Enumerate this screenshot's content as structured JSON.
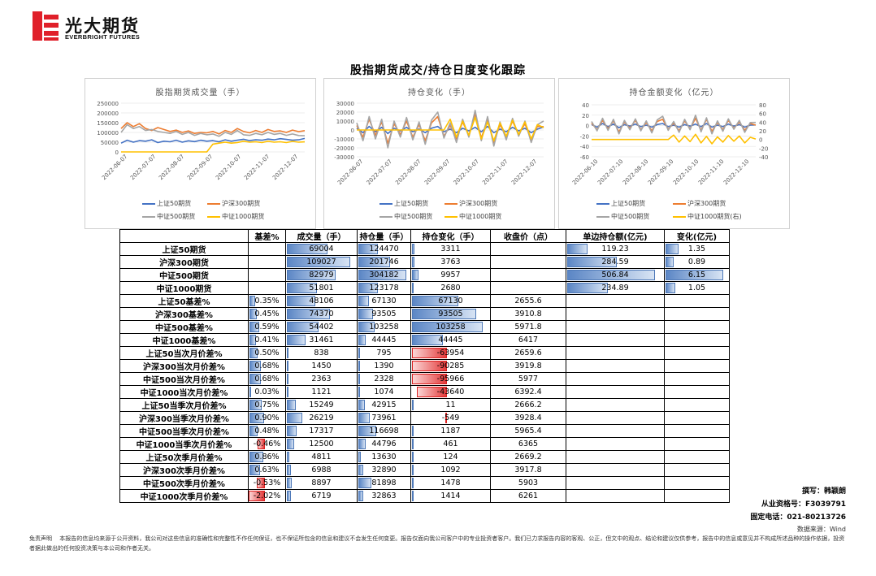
{
  "brand": {
    "name_cn": "光大期货",
    "name_en": "EVERBRIGHT FUTURES",
    "colors": {
      "red": "#e0202a",
      "dark": "#111111"
    }
  },
  "page_title": "股指期货成交/持仓日度变化跟踪",
  "chart_data": [
    {
      "type": "line",
      "title": "股指期货成交量（手）",
      "x_ticks": [
        "2022-06-07",
        "2022-07-07",
        "2022-08-07",
        "2022-09-07",
        "2022-10-07",
        "2022-11-07",
        "2022-12-07"
      ],
      "y_ticks": [
        0,
        50000,
        100000,
        150000,
        200000,
        250000
      ],
      "y_tick_labels": [
        "0",
        "50000",
        "100000",
        "150000",
        "200000",
        "250000"
      ],
      "ylim": [
        0,
        250000
      ],
      "series": [
        {
          "name": "上证50期货",
          "color": "#4472c4",
          "values": [
            45000,
            60000,
            50000,
            58000,
            55000,
            62000,
            48000,
            55000,
            52000,
            60000,
            50000,
            57000,
            53000,
            60000,
            55000,
            58000,
            52000,
            62000,
            55000,
            60000,
            65000,
            58000,
            62000,
            60000,
            66000,
            62000,
            68000,
            64000,
            60000,
            62000,
            69004
          ]
        },
        {
          "name": "沪深300期货",
          "color": "#ed7d31",
          "values": [
            120000,
            150000,
            130000,
            145000,
            120000,
            110000,
            125000,
            115000,
            105000,
            112000,
            100000,
            108000,
            95000,
            100000,
            98000,
            105000,
            92000,
            110000,
            100000,
            120000,
            105000,
            98000,
            110000,
            100000,
            115000,
            105000,
            108000,
            100000,
            112000,
            104000,
            109027
          ]
        },
        {
          "name": "中证500期货",
          "color": "#a5a5a5",
          "values": [
            100000,
            140000,
            120000,
            130000,
            110000,
            115000,
            105000,
            100000,
            95000,
            105000,
            90000,
            100000,
            85000,
            95000,
            88000,
            92000,
            80000,
            100000,
            90000,
            110000,
            88000,
            85000,
            95000,
            88000,
            100000,
            90000,
            95000,
            85000,
            92000,
            84000,
            82979
          ]
        },
        {
          "name": "中证1000期货",
          "color": "#ffc000",
          "values": [
            0,
            0,
            0,
            0,
            0,
            0,
            0,
            0,
            0,
            0,
            0,
            0,
            0,
            0,
            0,
            40000,
            45000,
            50000,
            45000,
            48000,
            55000,
            50000,
            52000,
            48000,
            55000,
            50000,
            52000,
            48000,
            54000,
            50000,
            51801
          ]
        }
      ]
    },
    {
      "type": "line",
      "title": "持仓变化（手）",
      "x_ticks": [
        "2022-06-07",
        "2022-07-07",
        "2022-08-07",
        "2022-09-07",
        "2022-10-07",
        "2022-11-07",
        "2022-12-07"
      ],
      "y_ticks": [
        -30000,
        -20000,
        -10000,
        0,
        10000,
        20000,
        30000
      ],
      "y_tick_labels": [
        "-30000",
        "-20000",
        "-10000",
        "0",
        "10000",
        "20000",
        "30000"
      ],
      "ylim": [
        -30000,
        30000
      ],
      "series": [
        {
          "name": "上证50期货",
          "color": "#4472c4",
          "values": [
            2000,
            -3000,
            4000,
            -2000,
            3000,
            -4000,
            2000,
            -1000,
            3000,
            -2000,
            1000,
            -3000,
            2000,
            4000,
            -2000,
            1000,
            -3000,
            2000,
            -1000,
            3000,
            -2000,
            4000,
            -3000,
            1000,
            -2000,
            3000,
            -1000,
            2000,
            -3000,
            1000,
            3311
          ]
        },
        {
          "name": "沪深300期货",
          "color": "#ed7d31",
          "values": [
            5000,
            -8000,
            12000,
            -6000,
            9000,
            -15000,
            7000,
            -5000,
            10000,
            -8000,
            6000,
            -12000,
            8000,
            15000,
            -7000,
            5000,
            -10000,
            9000,
            -6000,
            18000,
            -9000,
            12000,
            -14000,
            6000,
            -8000,
            10000,
            -5000,
            7000,
            -11000,
            4000,
            3763
          ]
        },
        {
          "name": "中证500期货",
          "color": "#a5a5a5",
          "values": [
            8000,
            -12000,
            15000,
            -10000,
            12000,
            -20000,
            10000,
            -8000,
            14000,
            -11000,
            9000,
            -16000,
            11000,
            20000,
            -9000,
            8000,
            -14000,
            12000,
            -8000,
            22000,
            -12000,
            15000,
            -18000,
            9000,
            -11000,
            13000,
            -7000,
            10000,
            -14000,
            6000,
            9957
          ]
        },
        {
          "name": "中证1000期货",
          "color": "#ffc000",
          "values": [
            0,
            0,
            0,
            0,
            0,
            0,
            0,
            0,
            0,
            0,
            0,
            0,
            0,
            0,
            0,
            12000,
            -8000,
            10000,
            -6000,
            14000,
            -10000,
            9000,
            -12000,
            8000,
            -7000,
            11000,
            -5000,
            9000,
            -10000,
            6000,
            2680
          ]
        }
      ]
    },
    {
      "type": "line",
      "title": "持仓金额变化（亿元）",
      "x_ticks": [
        "2022-06-10",
        "2022-07-10",
        "2022-08-10",
        "2022-09-10",
        "2022-10-10",
        "2022-11-10",
        "2022-12-10"
      ],
      "y_ticks": [
        -60,
        -40,
        -20,
        0,
        20,
        40
      ],
      "y_tick_labels": [
        "-60",
        "-40",
        "-20",
        "0",
        "20",
        "40"
      ],
      "y2_ticks": [
        -40,
        -20,
        0,
        20,
        40,
        60,
        80
      ],
      "y2_tick_labels": [
        "-40",
        "-20",
        "0",
        "20",
        "40",
        "60",
        "80"
      ],
      "ylim": [
        -60,
        40
      ],
      "y2lim": [
        -40,
        80
      ],
      "series": [
        {
          "name": "上证50期货",
          "color": "#4472c4",
          "values": [
            2,
            -3,
            4,
            -2,
            3,
            -4,
            2,
            -1,
            3,
            -2,
            1,
            -3,
            2,
            4,
            -2,
            1,
            -3,
            2,
            -1,
            3,
            -2,
            4,
            -3,
            1,
            -2,
            3,
            -1,
            2,
            -3,
            1,
            1.35
          ]
        },
        {
          "name": "沪深300期货",
          "color": "#ed7d31",
          "values": [
            5,
            -8,
            10,
            -6,
            9,
            -12,
            7,
            -5,
            10,
            -8,
            6,
            -10,
            8,
            12,
            -7,
            5,
            -10,
            9,
            -6,
            14,
            -9,
            12,
            -11,
            6,
            -8,
            10,
            -5,
            7,
            -9,
            4,
            0.89
          ]
        },
        {
          "name": "中证500期货",
          "color": "#a5a5a5",
          "values": [
            8,
            -10,
            14,
            -9,
            12,
            -16,
            10,
            -8,
            13,
            -10,
            9,
            -14,
            11,
            18,
            -9,
            8,
            -13,
            12,
            -8,
            20,
            -12,
            15,
            -16,
            9,
            -11,
            13,
            -7,
            10,
            -13,
            6,
            6.15
          ]
        },
        {
          "name": "中证1000期货(右)",
          "color": "#ffc000",
          "axis": "right",
          "values": [
            0,
            0,
            0,
            0,
            0,
            0,
            0,
            0,
            0,
            0,
            0,
            0,
            0,
            0,
            0,
            10,
            -6,
            8,
            -5,
            12,
            -8,
            7,
            -10,
            6,
            -6,
            9,
            -4,
            8,
            -8,
            5,
            1.05
          ]
        }
      ]
    }
  ],
  "table": {
    "headers": [
      "",
      "基差%",
      "成交量（手）",
      "持仓量（手）",
      "持仓变化（手）",
      "收盘价（点）",
      "单边持仓额(亿元)",
      "变化(亿元)"
    ],
    "rows": [
      {
        "label": "上证50期货",
        "basis": "",
        "volume": "69004",
        "oi": "124470",
        "oi_change": "3311",
        "close": "",
        "amount": "119.23",
        "amount_change": "1.35"
      },
      {
        "label": "沪深300期货",
        "basis": "",
        "volume": "109027",
        "oi": "201746",
        "oi_change": "3763",
        "close": "",
        "amount": "284.59",
        "amount_change": "0.89"
      },
      {
        "label": "中证500期货",
        "basis": "",
        "volume": "82979",
        "oi": "304182",
        "oi_change": "9957",
        "close": "",
        "amount": "506.84",
        "amount_change": "6.15"
      },
      {
        "label": "中证1000期货",
        "basis": "",
        "volume": "51801",
        "oi": "123178",
        "oi_change": "2680",
        "close": "",
        "amount": "234.89",
        "amount_change": "1.05"
      },
      {
        "label": "上证50基差%",
        "basis": "0.35%",
        "volume": "48106",
        "oi": "67130",
        "oi_change": "67130",
        "close": "2655.6",
        "amount": "",
        "amount_change": ""
      },
      {
        "label": "沪深300基差%",
        "basis": "0.45%",
        "volume": "74370",
        "oi": "93505",
        "oi_change": "93505",
        "close": "3910.8",
        "amount": "",
        "amount_change": ""
      },
      {
        "label": "中证500基差%",
        "basis": "0.59%",
        "volume": "54402",
        "oi": "103258",
        "oi_change": "103258",
        "close": "5971.8",
        "amount": "",
        "amount_change": ""
      },
      {
        "label": "中证1000基差%",
        "basis": "0.41%",
        "volume": "31461",
        "oi": "44445",
        "oi_change": "44445",
        "close": "6417",
        "amount": "",
        "amount_change": ""
      },
      {
        "label": "上证50当次月价差%",
        "basis": "0.50%",
        "volume": "838",
        "oi": "795",
        "oi_change": "-63954",
        "close": "2659.6",
        "amount": "",
        "amount_change": ""
      },
      {
        "label": "沪深300当次月价差%",
        "basis": "0.68%",
        "volume": "1450",
        "oi": "1390",
        "oi_change": "-90285",
        "close": "3919.8",
        "amount": "",
        "amount_change": ""
      },
      {
        "label": "中证500当次月价差%",
        "basis": "0.68%",
        "volume": "2363",
        "oi": "2328",
        "oi_change": "-95966",
        "close": "5977",
        "amount": "",
        "amount_change": ""
      },
      {
        "label": "中证1000当次月价差%",
        "basis": "0.03%",
        "volume": "1121",
        "oi": "1074",
        "oi_change": "-43640",
        "close": "6392.4",
        "amount": "",
        "amount_change": ""
      },
      {
        "label": "上证50当季次月价差%",
        "basis": "0.75%",
        "volume": "15249",
        "oi": "42915",
        "oi_change": "11",
        "close": "2666.2",
        "amount": "",
        "amount_change": ""
      },
      {
        "label": "沪深300当季次月价差%",
        "basis": "0.90%",
        "volume": "26219",
        "oi": "73961",
        "oi_change": "-549",
        "close": "3928.4",
        "amount": "",
        "amount_change": ""
      },
      {
        "label": "中证500当季次月价差%",
        "basis": "0.48%",
        "volume": "17317",
        "oi": "116698",
        "oi_change": "1187",
        "close": "5965.4",
        "amount": "",
        "amount_change": ""
      },
      {
        "label": "中证1000当季次月价差%",
        "basis": "-0.46%",
        "volume": "12500",
        "oi": "44796",
        "oi_change": "461",
        "close": "6365",
        "amount": "",
        "amount_change": ""
      },
      {
        "label": "上证50次季月价差%",
        "basis": "0.86%",
        "volume": "4811",
        "oi": "13630",
        "oi_change": "124",
        "close": "2669.2",
        "amount": "",
        "amount_change": ""
      },
      {
        "label": "沪深300次季月价差%",
        "basis": "0.63%",
        "volume": "6988",
        "oi": "32890",
        "oi_change": "1092",
        "close": "3917.8",
        "amount": "",
        "amount_change": ""
      },
      {
        "label": "中证500次季月价差%",
        "basis": "-0.53%",
        "volume": "8897",
        "oi": "81898",
        "oi_change": "1478",
        "close": "5903",
        "amount": "",
        "amount_change": ""
      },
      {
        "label": "中证1000次季月价差%",
        "basis": "-2.02%",
        "volume": "6719",
        "oi": "32863",
        "oi_change": "1414",
        "close": "6261",
        "amount": "",
        "amount_change": ""
      }
    ]
  },
  "footer": {
    "author": "撰写：韩颖朗",
    "license": "从业资格号：F3039791",
    "phone": "固定电话：021-80213726",
    "source": "数据来源：Wind",
    "disclaimer": "免责声明　 本报告的信息均来源于公开资料，我公司对这些信息的准确性和完整性不作任何保证，也不保证所包含的信息和建议不会发生任何变更。报告仅面向我公司客户中的专业投资者客户。我们已力求报告内容的客观、公正，但文中的观点、结论和建议仅供参考，报告中的信息或意见并不构成所述品种的操作依据，投资者据此做出的任何投资决策与本公司和作者无关。"
  }
}
